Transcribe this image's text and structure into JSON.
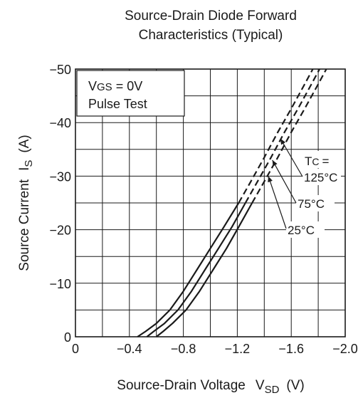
{
  "chart_data": {
    "type": "line",
    "title_line1": "Source-Drain Diode Forward",
    "title_line2": "Characteristics (Typical)",
    "xlabel_main": "Source-Drain Voltage",
    "xlabel_symbol": "V",
    "xlabel_sub": "SD",
    "xlabel_unit": "(V)",
    "ylabel_main": "Source Current",
    "ylabel_symbol": "I",
    "ylabel_sub": "S",
    "ylabel_unit": "(A)",
    "xlim": [
      0,
      -2.0
    ],
    "ylim": [
      0,
      -50
    ],
    "x_ticks": [
      0,
      -0.4,
      -0.8,
      -1.2,
      -1.6,
      -2.0
    ],
    "x_tick_labels": [
      "0",
      "−0.4",
      "−0.8",
      "−1.2",
      "−1.6",
      "−2.0"
    ],
    "y_ticks": [
      0,
      -10,
      -20,
      -30,
      -40,
      -50
    ],
    "y_tick_labels": [
      "0",
      "−10",
      "−20",
      "−30",
      "−40",
      "−50"
    ],
    "grid": true,
    "conditions": {
      "vgs_symbol": "V",
      "vgs_sub": "GS",
      "vgs_value": "= 0V",
      "pulse": "Pulse Test"
    },
    "temp_header_symbol": "T",
    "temp_header_sub": "C",
    "temp_header_suffix": "=",
    "series": [
      {
        "name": "125°C",
        "solid": [
          [
            -0.46,
            0
          ],
          [
            -0.52,
            -1
          ],
          [
            -0.6,
            -2.5
          ],
          [
            -0.7,
            -5
          ],
          [
            -0.8,
            -8.5
          ],
          [
            -0.9,
            -12.5
          ],
          [
            -1.0,
            -16.5
          ],
          [
            -1.1,
            -20.5
          ],
          [
            -1.21,
            -25
          ]
        ],
        "dashed": [
          [
            -1.21,
            -25
          ],
          [
            -1.3,
            -29
          ],
          [
            -1.4,
            -33.5
          ],
          [
            -1.5,
            -38.2
          ],
          [
            -1.6,
            -42.6
          ],
          [
            -1.7,
            -47.2
          ],
          [
            -1.76,
            -50
          ]
        ]
      },
      {
        "name": "75°C",
        "solid": [
          [
            -0.53,
            0
          ],
          [
            -0.58,
            -1
          ],
          [
            -0.66,
            -2.5
          ],
          [
            -0.76,
            -5
          ],
          [
            -0.86,
            -8.5
          ],
          [
            -0.96,
            -12.5
          ],
          [
            -1.06,
            -16.5
          ],
          [
            -1.16,
            -20.5
          ],
          [
            -1.26,
            -25
          ]
        ],
        "dashed": [
          [
            -1.26,
            -25
          ],
          [
            -1.35,
            -29
          ],
          [
            -1.45,
            -33.5
          ],
          [
            -1.55,
            -38.2
          ],
          [
            -1.65,
            -42.6
          ],
          [
            -1.75,
            -47.2
          ],
          [
            -1.81,
            -50
          ]
        ]
      },
      {
        "name": "25°C",
        "solid": [
          [
            -0.6,
            0
          ],
          [
            -0.65,
            -1
          ],
          [
            -0.72,
            -2.5
          ],
          [
            -0.82,
            -5
          ],
          [
            -0.92,
            -8.5
          ],
          [
            -1.02,
            -12.5
          ],
          [
            -1.12,
            -16.5
          ],
          [
            -1.21,
            -20.5
          ],
          [
            -1.31,
            -25
          ]
        ],
        "dashed": [
          [
            -1.31,
            -25
          ],
          [
            -1.4,
            -29
          ],
          [
            -1.5,
            -33.5
          ],
          [
            -1.6,
            -38.2
          ],
          [
            -1.7,
            -42.6
          ],
          [
            -1.8,
            -47.2
          ],
          [
            -1.86,
            -50
          ]
        ]
      }
    ]
  }
}
